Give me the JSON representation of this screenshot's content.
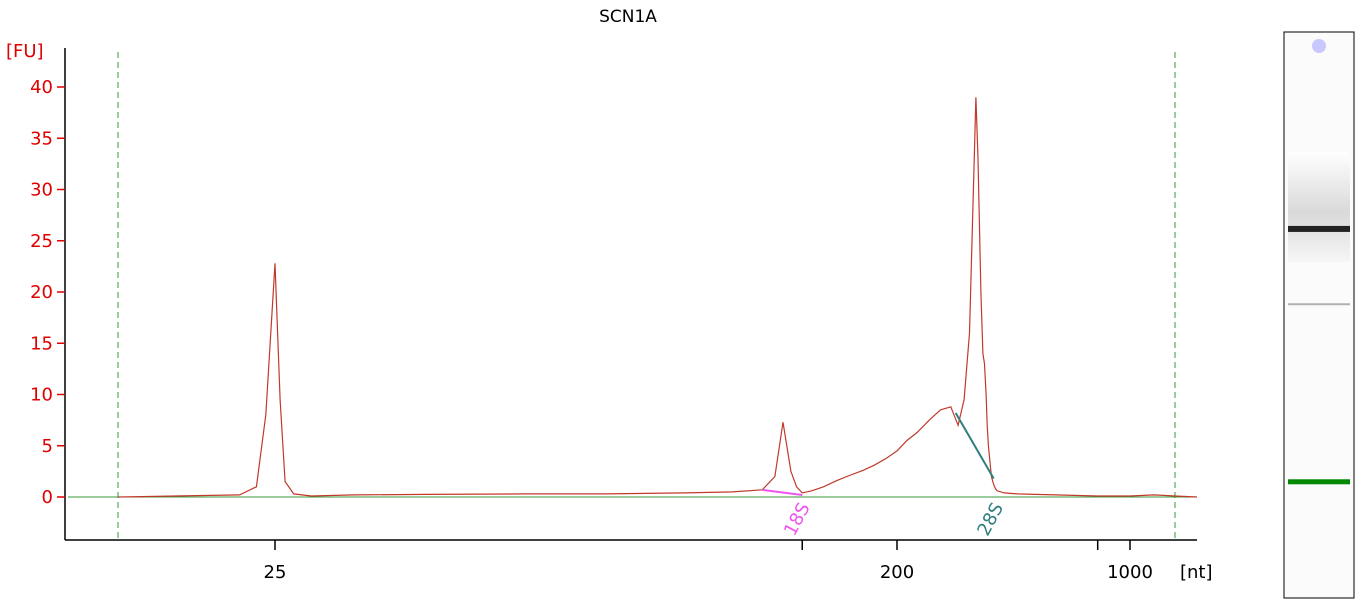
{
  "chart_data": {
    "type": "line",
    "title": "SCN1A",
    "ylabel": "[FU]",
    "xlabel": "[nt]",
    "ylim": [
      -4,
      43
    ],
    "yticks": [
      "0",
      "5",
      "10",
      "15",
      "20",
      "25",
      "30",
      "35",
      "40"
    ],
    "ytick_values": [
      0,
      5,
      10,
      15,
      20,
      25,
      30,
      35,
      40
    ],
    "xticks": [
      "25",
      "200",
      "1000"
    ],
    "grid": false,
    "series": [
      {
        "color": "#c0392b",
        "x": [
          19.0,
          21.0,
          23.5,
          24.2,
          24.6,
          25.0,
          25.4,
          25.8,
          26.5,
          28.0,
          32,
          40,
          55,
          70,
          90,
          105,
          118,
          124,
          128,
          132,
          135,
          138,
          143,
          150,
          158,
          166,
          175,
          183,
          192,
          200,
          214,
          230,
          250,
          270,
          290,
          305,
          318,
          330,
          345,
          350,
          357,
          362,
          366,
          370,
          373,
          376,
          380,
          384,
          390,
          395,
          400,
          420,
          460,
          520,
          600,
          700,
          800,
          900,
          1000,
          1150,
          1300,
          1500
        ],
        "y": [
          0.0,
          0.1,
          0.2,
          1.0,
          8.0,
          22.8,
          9.5,
          1.5,
          0.3,
          0.1,
          0.2,
          0.25,
          0.3,
          0.3,
          0.4,
          0.5,
          0.7,
          2.0,
          7.3,
          2.5,
          1.0,
          0.4,
          0.6,
          1.0,
          1.6,
          2.1,
          2.6,
          3.1,
          3.8,
          4.5,
          5.5,
          6.3,
          7.5,
          8.5,
          8.8,
          7.0,
          9.5,
          16.0,
          39.0,
          33.0,
          20.0,
          14.0,
          13.0,
          10.0,
          7.0,
          5.0,
          3.5,
          2.0,
          1.2,
          0.8,
          0.6,
          0.4,
          0.3,
          0.25,
          0.2,
          0.15,
          0.1,
          0.1,
          0.1,
          0.2,
          0.1,
          0.0
        ]
      }
    ],
    "baseline": {
      "color": "#3a9a3a",
      "x": [
        19.0,
        1500
      ],
      "y": [
        0,
        0
      ]
    },
    "ladder_markers": {
      "x": [
        19.0,
        1300
      ],
      "color": "#3a9a3a"
    },
    "annotations": [
      {
        "label": "18S",
        "color": "#ee55ee",
        "x": [
          118,
          138
        ],
        "y": [
          0.7,
          0.2
        ],
        "label_x": 138
      },
      {
        "label": "28S",
        "color": "#2f7f7f",
        "x": [
          300,
          390
        ],
        "y": [
          8.2,
          1.8
        ],
        "label_x": 395
      }
    ],
    "gel": {
      "bands": [
        {
          "position": 0.0,
          "color": "#c8c8ff",
          "shape": "marker-dot"
        },
        {
          "position": 0.34,
          "color": "#222222",
          "strength": "strong"
        },
        {
          "position": 0.48,
          "color": "#b0b0b0",
          "strength": "faint"
        },
        {
          "position": 0.81,
          "color": "#008800",
          "strength": "marker"
        }
      ]
    }
  }
}
